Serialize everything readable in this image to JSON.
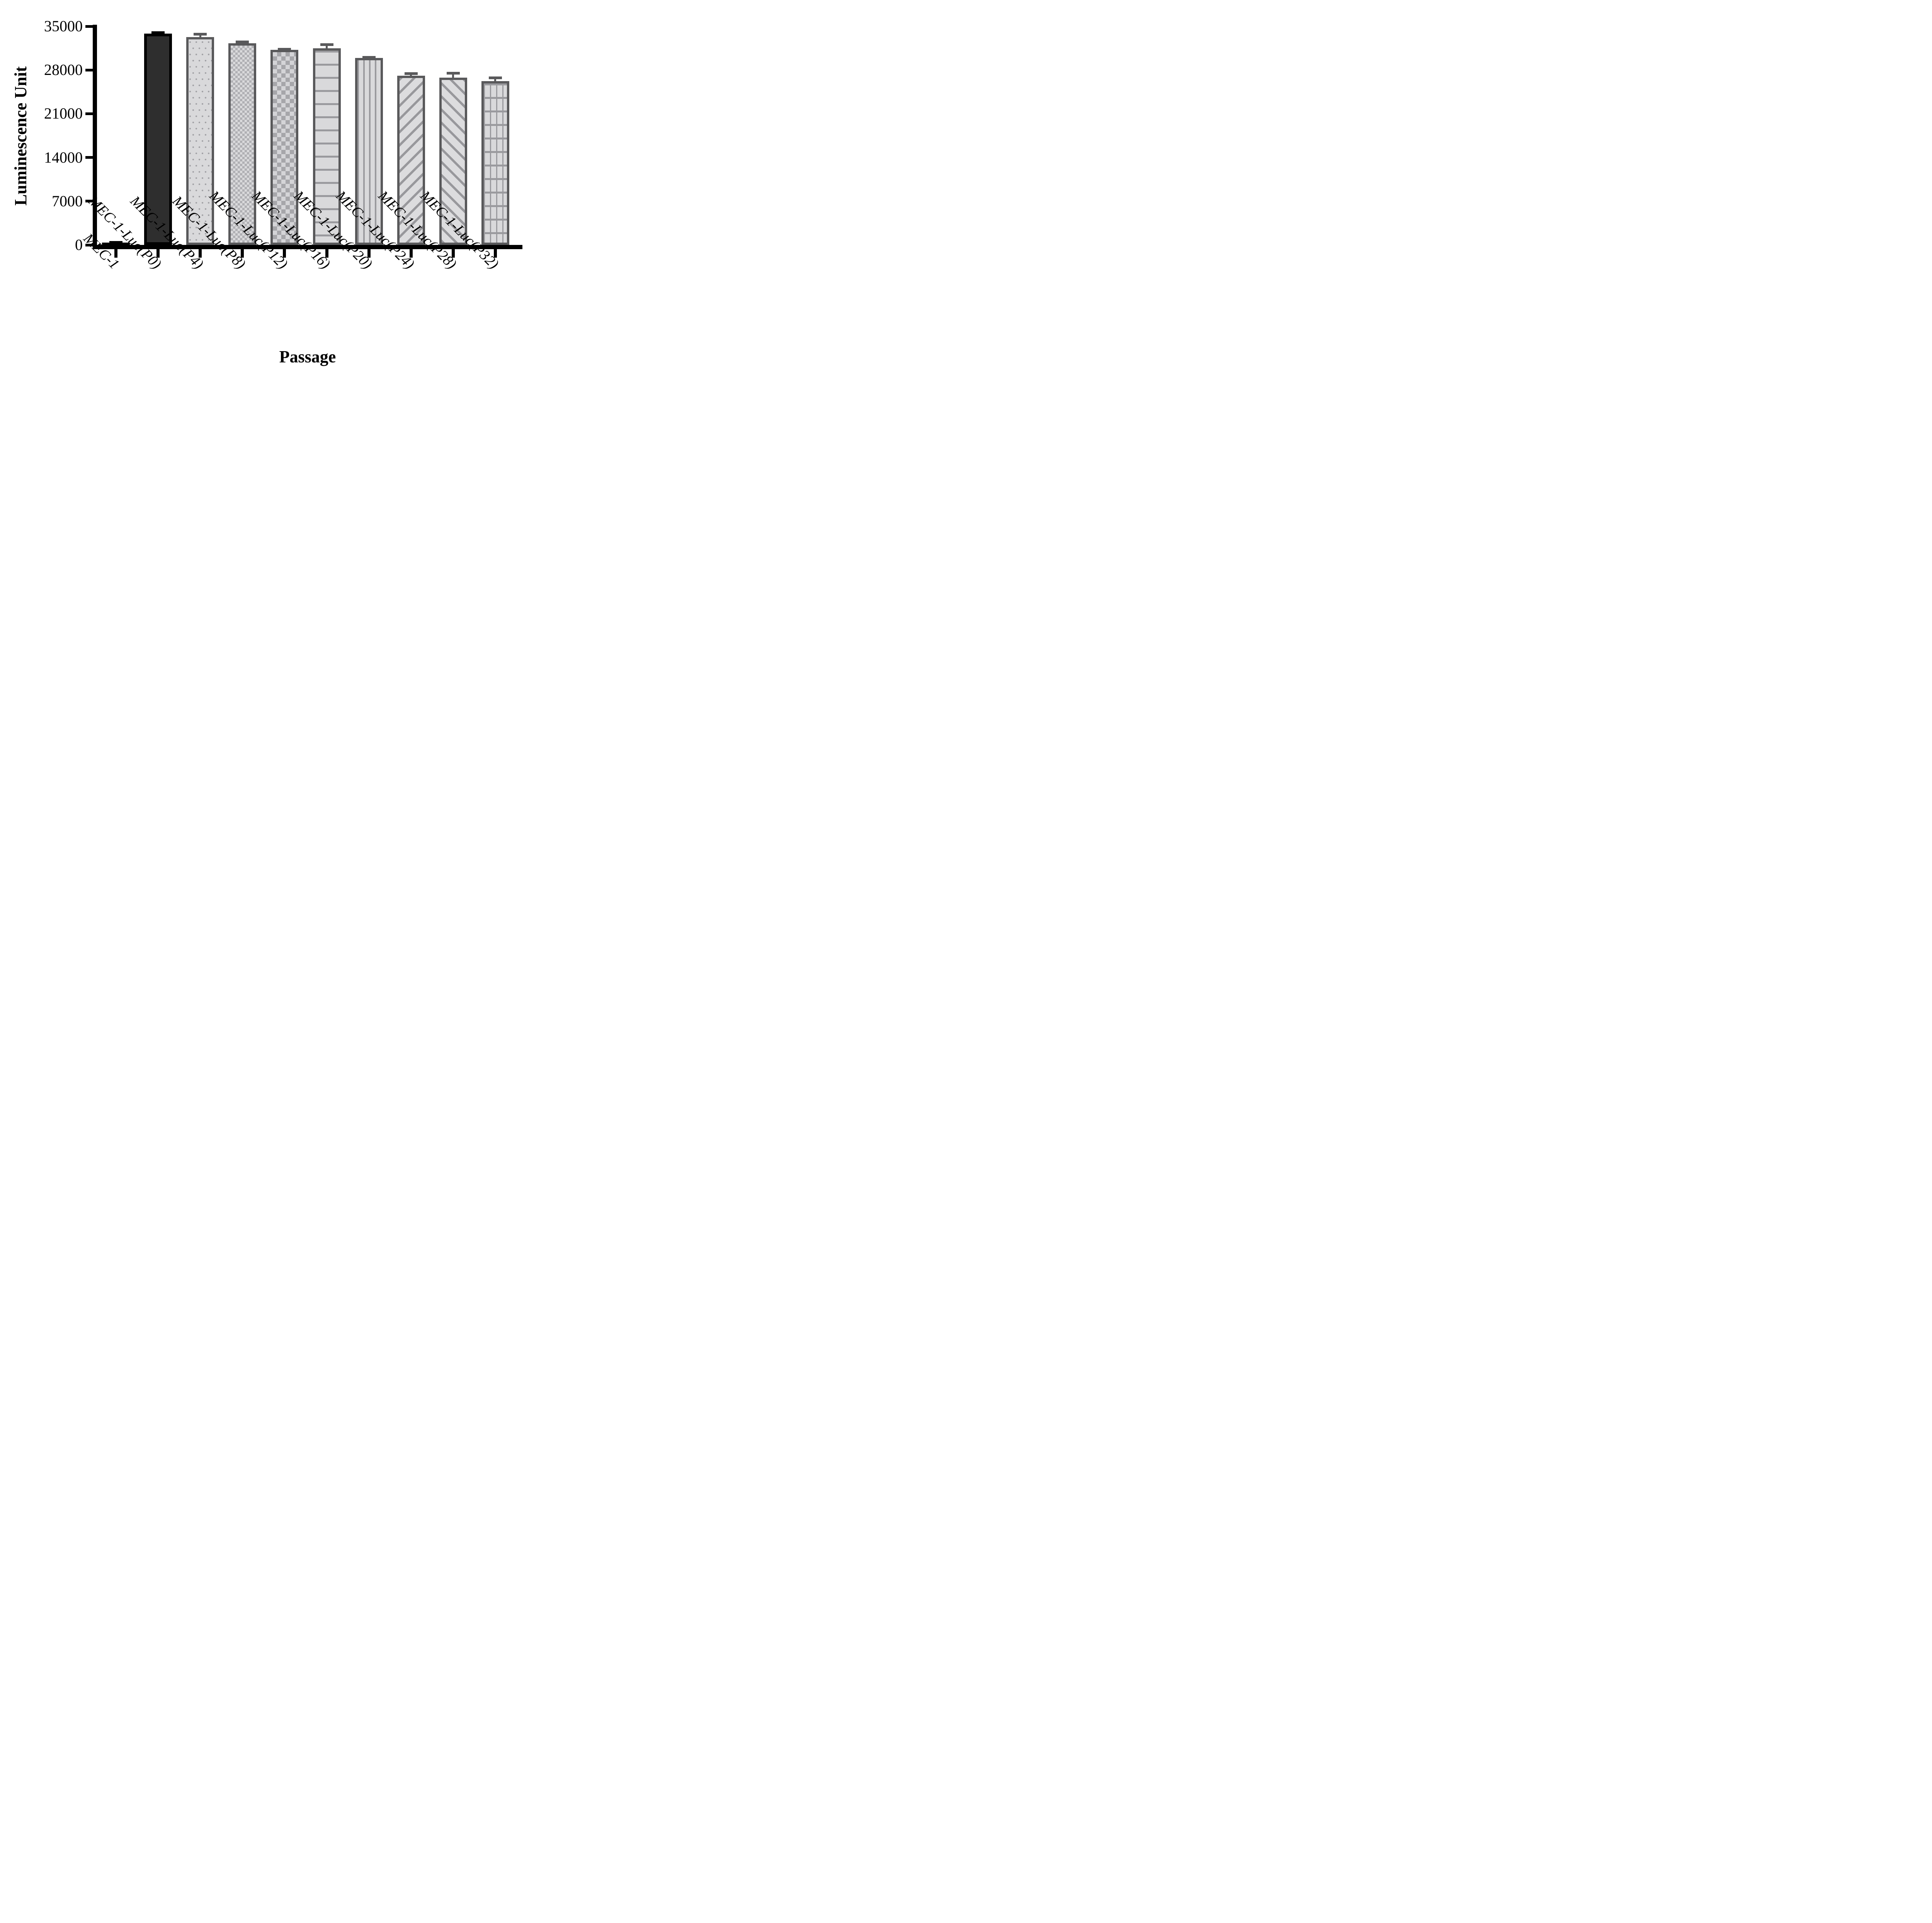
{
  "chart_data": {
    "type": "bar",
    "title": "",
    "xlabel": "Passage",
    "ylabel": "Luminescence Unit",
    "categories": [
      "MEC-1",
      "MEC-1-Luc(P0)",
      "MEC-1-Luc(P4)",
      "MEC-1-Luc(P8)",
      "MEC-1-Luc(P12)",
      "MEC-1-Luc(P16)",
      "MEC-1-Luc(P20)",
      "MEC-1-Luc(P24)",
      "MEC-1-Luc(P28)",
      "MEC-1-Luc(P32)"
    ],
    "values": [
      400,
      33850,
      33250,
      32250,
      31200,
      31450,
      29900,
      27100,
      26750,
      26200
    ],
    "errors_upper": [
      200,
      350,
      700,
      450,
      350,
      850,
      350,
      550,
      950,
      750
    ],
    "error_style": "upper-whisker-with-cap",
    "patterns": [
      "solid-black",
      "solid-dark",
      "dots",
      "checker-fine",
      "checker-coarse",
      "hlines",
      "vlines",
      "diag-up",
      "diag-down",
      "grid"
    ],
    "ylim": [
      0,
      35000
    ],
    "yticks": [
      0,
      7000,
      14000,
      21000,
      28000,
      35000
    ],
    "ytick_labels": [
      "0",
      "7000",
      "14000",
      "21000",
      "28000",
      "35000"
    ],
    "grid": false,
    "legend_position": "none",
    "x_label_rotation_deg": 45,
    "colors": {
      "background": "#ffffff",
      "axis": "#000000",
      "black_bar_fill": "#141414",
      "dark_bar_fill": "#2e2e2e",
      "light_bar_fill": "#d9d9db",
      "pattern_gray": "#9a9a9e",
      "bar_border_gray": "#59595b",
      "bar_border_black": "#000000",
      "error_bar_gray": "#59595b",
      "error_bar_black": "#000000"
    }
  }
}
